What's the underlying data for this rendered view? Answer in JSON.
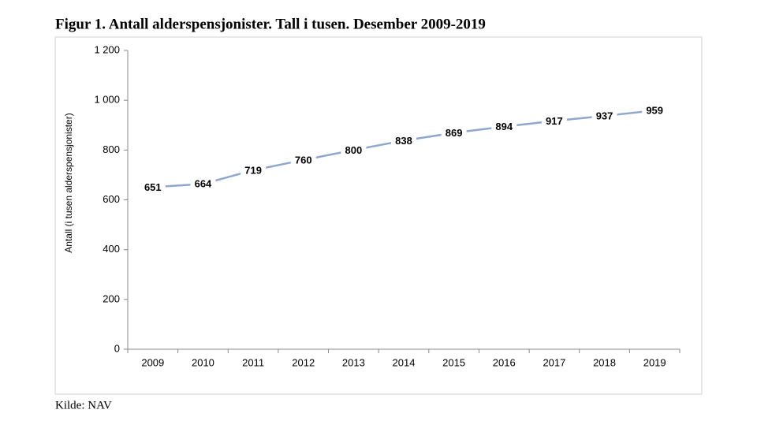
{
  "chart_data": {
    "type": "line",
    "title": "Figur 1. Antall alderspensjonister. Tall i tusen. Desember 2009-2019",
    "y_label": "Antall (i tusen alderspensjonister)",
    "source": "Kilde: NAV",
    "categories": [
      "2009",
      "2010",
      "2011",
      "2012",
      "2013",
      "2014",
      "2015",
      "2016",
      "2017",
      "2018",
      "2019"
    ],
    "values": [
      651,
      664,
      719,
      760,
      800,
      838,
      869,
      894,
      917,
      937,
      959
    ],
    "color": "#8fa6cf",
    "ylim": [
      0,
      1200
    ],
    "yticks": [
      0,
      200,
      400,
      600,
      800,
      {
        "value": 1000,
        "label": "1 000"
      },
      {
        "value": 1200,
        "label": "1 200"
      }
    ],
    "grid": false
  }
}
